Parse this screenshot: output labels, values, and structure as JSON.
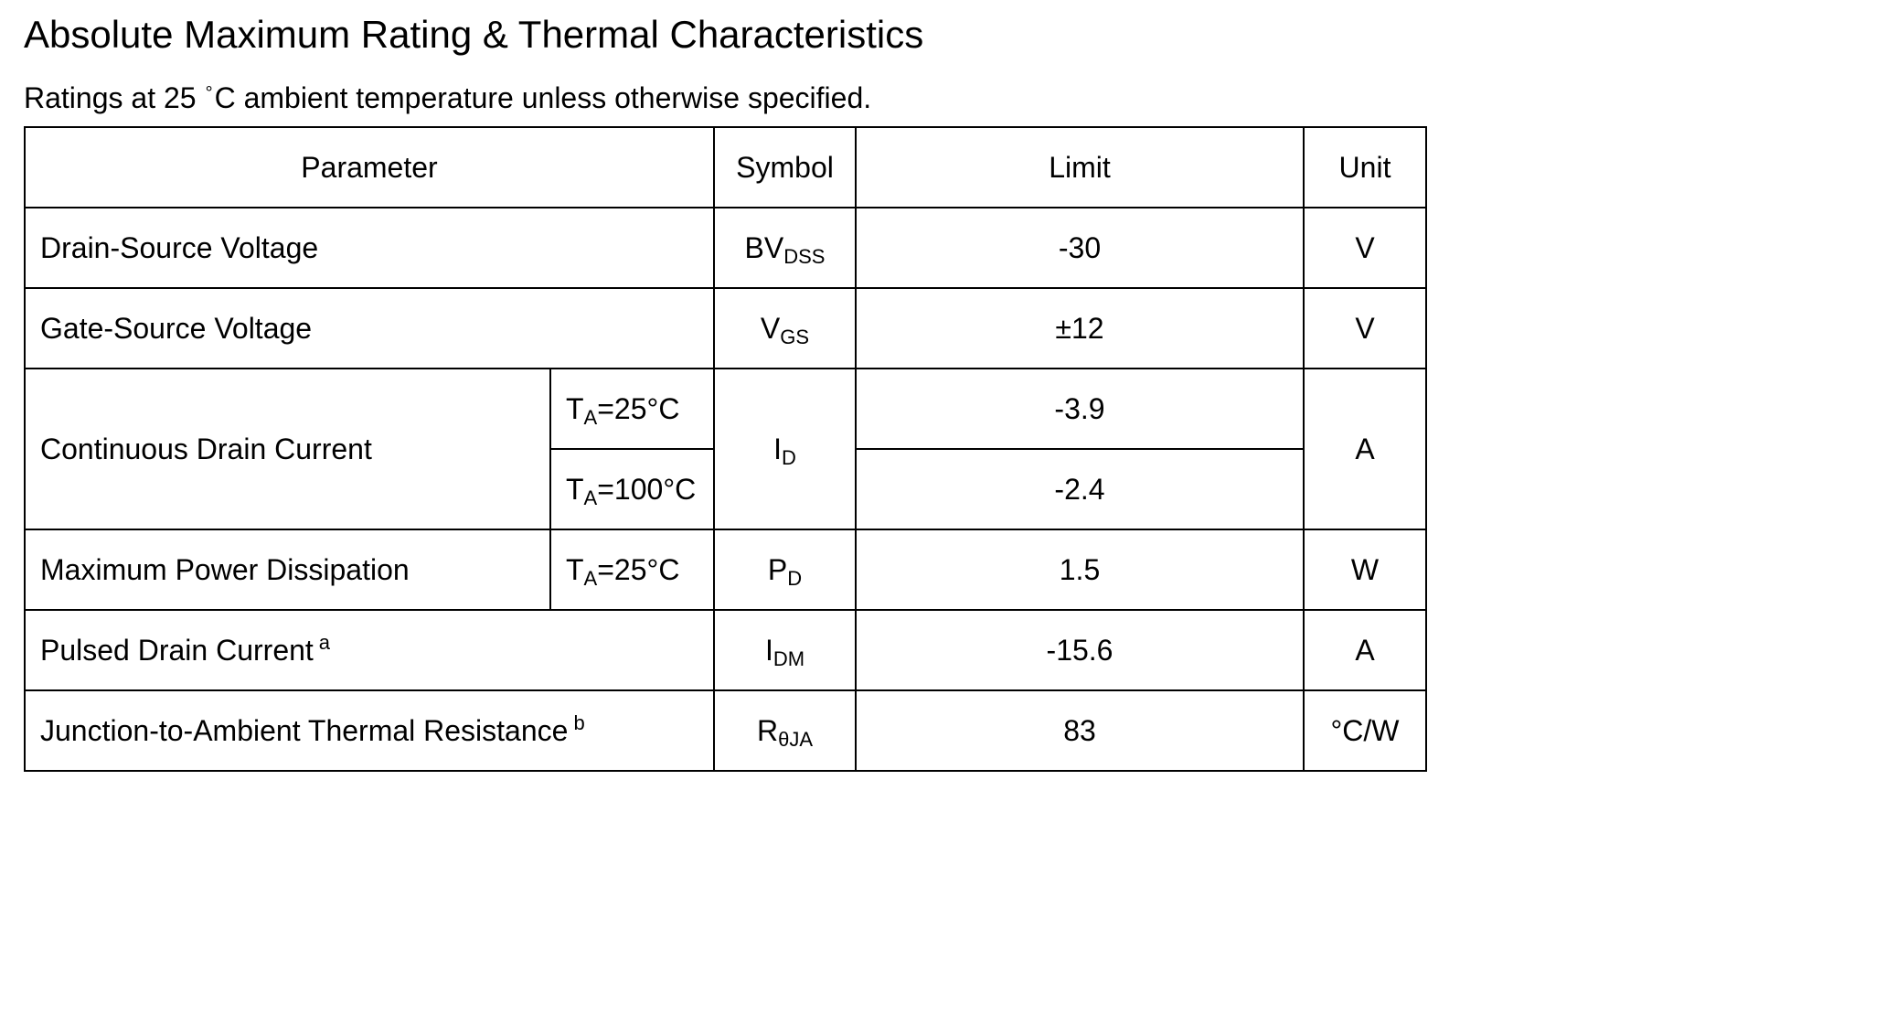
{
  "title": "Absolute Maximum Rating & Thermal Characteristics",
  "subtitle": {
    "prefix": "Ratings at 25",
    "degree": "°",
    "unit_and_rest": "C  ambient temperature unless otherwise specified."
  },
  "table": {
    "headers": {
      "parameter": "Parameter",
      "symbol": "Symbol",
      "limit": "Limit",
      "unit": "Unit"
    },
    "rows": {
      "vds": {
        "parameter": "Drain-Source Voltage",
        "symbol_main": "BV",
        "symbol_sub": "DSS",
        "limit": "-30",
        "unit": "V"
      },
      "vgs": {
        "parameter": "Gate-Source Voltage",
        "symbol_main": "V",
        "symbol_sub": "GS",
        "limit": "±12",
        "unit": "V"
      },
      "id": {
        "parameter": "Continuous Drain Current",
        "cond1_main": "T",
        "cond1_sub": "A",
        "cond1_rest": "=25°C",
        "cond2_main": "T",
        "cond2_sub": "A",
        "cond2_rest": "=100°C",
        "symbol_main": "I",
        "symbol_sub": "D",
        "limit1": "-3.9",
        "limit2": "-2.4",
        "unit": "A"
      },
      "pd": {
        "parameter": "Maximum Power Dissipation",
        "cond_main": "T",
        "cond_sub": "A",
        "cond_rest": "=25°C",
        "symbol_main": "P",
        "symbol_sub": "D",
        "limit": "1.5",
        "unit": "W"
      },
      "idm": {
        "parameter": "Pulsed Drain Current",
        "note": "a",
        "symbol_main": "I",
        "symbol_sub": "DM",
        "limit": "-15.6",
        "unit": "A"
      },
      "rth": {
        "parameter": "Junction-to-Ambient Thermal Resistance",
        "note": "b",
        "symbol_main": "R",
        "symbol_sub": "θJA",
        "limit": "83",
        "unit": "°C/W"
      }
    }
  }
}
